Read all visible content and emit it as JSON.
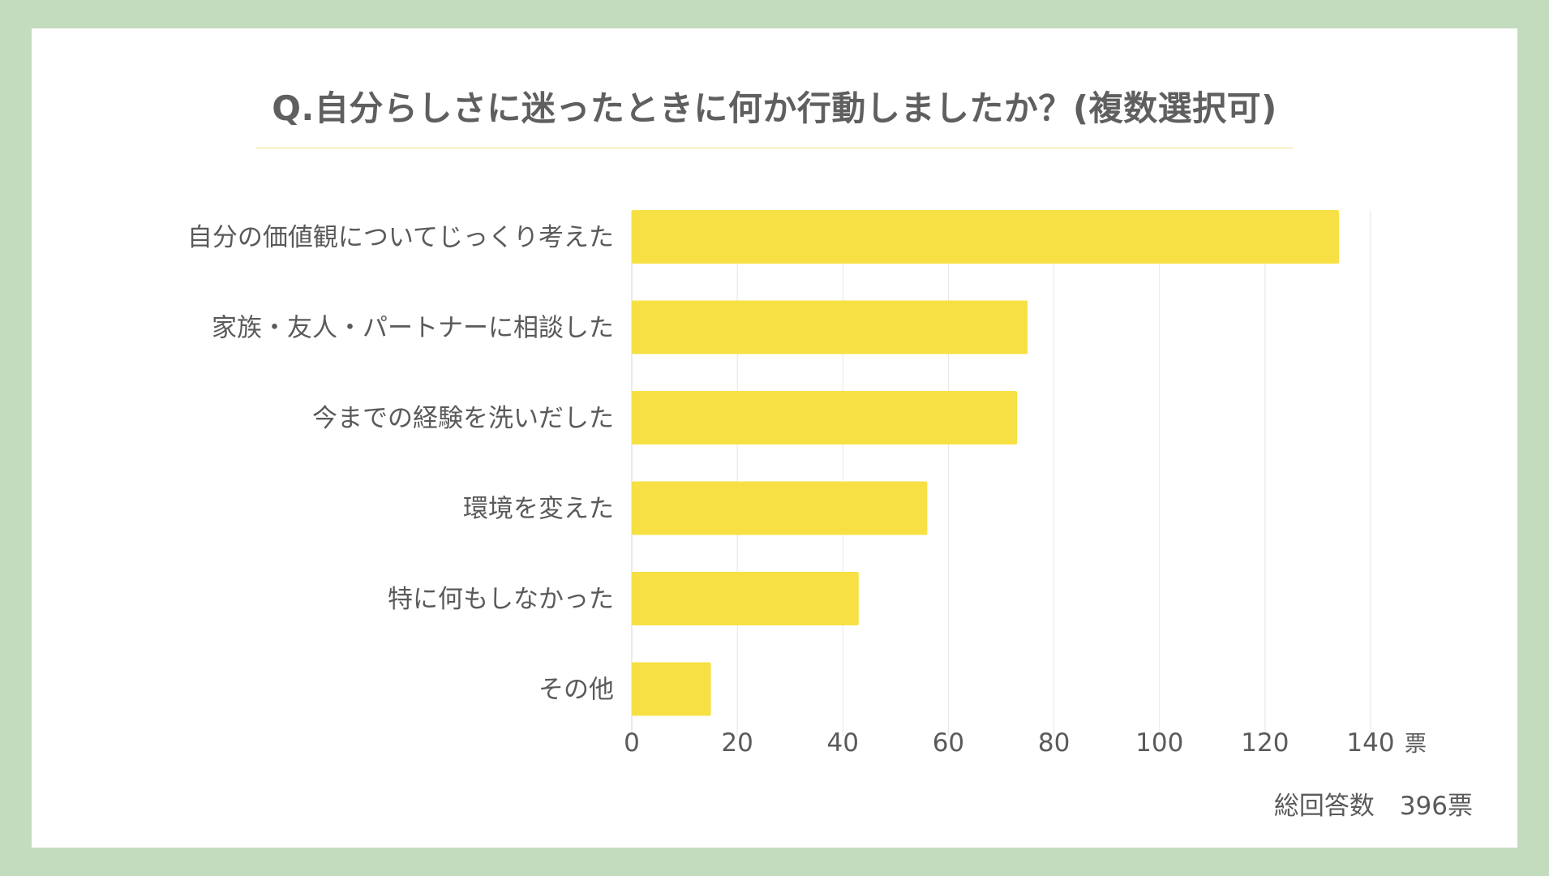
{
  "title": "Q.自分らしさに迷ったときに何か行動しましたか？(複数選択可)",
  "total": {
    "label": "総回答数",
    "value": "396票"
  },
  "colors": {
    "bar": "#f7e043",
    "background": "#c4dcbe",
    "card": "#ffffff",
    "grid": "#e6e6e6",
    "text": "#5a5a5a"
  },
  "chart_data": {
    "type": "bar",
    "orientation": "horizontal",
    "categories": [
      "自分の価値観についてじっくり考えた",
      "家族・友人・パートナーに相談した",
      "今までの経験を洗いだした",
      "環境を変えた",
      "特に何もしなかった",
      "その他"
    ],
    "values": [
      134,
      75,
      73,
      56,
      43,
      15
    ],
    "xlim": [
      0,
      140
    ],
    "xticks": [
      "0",
      "20",
      "40",
      "60",
      "80",
      "100",
      "120",
      "140"
    ],
    "xunit": "票",
    "grid": true,
    "legend": "none"
  }
}
